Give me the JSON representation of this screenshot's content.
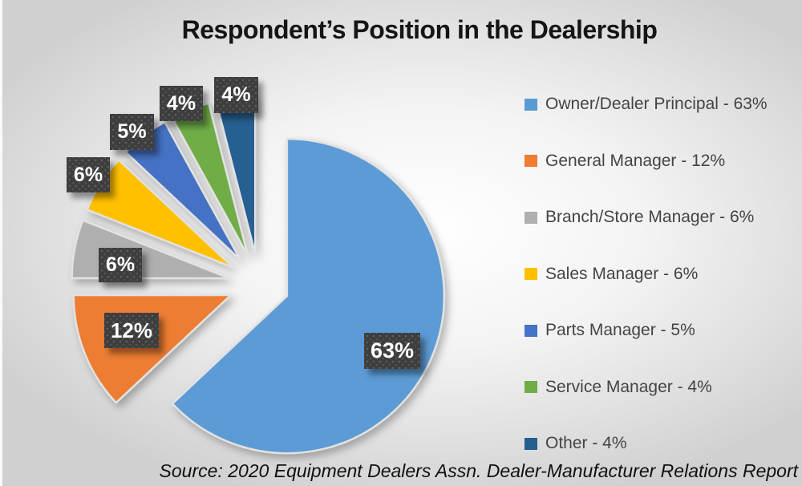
{
  "title": "Respondent’s Position in the Dealership",
  "source": "Source: 2020 Equipment Dealers Assn. Dealer-Manufacturer Relations Report",
  "chart_data": {
    "type": "pie",
    "title": "Respondent’s Position in the Dealership",
    "exploded": true,
    "start_angle_deg": 0,
    "direction": "clockwise",
    "legend_position": "right",
    "slices": [
      {
        "label": "Owner/Dealer Principal",
        "value": 63,
        "pct_label": "63%",
        "color": "#5B9BD5"
      },
      {
        "label": "General Manager",
        "value": 12,
        "pct_label": "12%",
        "color": "#ED7D31"
      },
      {
        "label": "Branch/Store Manager",
        "value": 6,
        "pct_label": "6%",
        "color": "#AFAFAF"
      },
      {
        "label": "Sales Manager",
        "value": 6,
        "pct_label": "6%",
        "color": "#FFC000"
      },
      {
        "label": "Parts Manager",
        "value": 5,
        "pct_label": "5%",
        "color": "#4472C4"
      },
      {
        "label": "Service Manager",
        "value": 4,
        "pct_label": "4%",
        "color": "#70AD47"
      },
      {
        "label": "Other",
        "value": 4,
        "pct_label": "4%",
        "color": "#255E91"
      }
    ],
    "legend_items": [
      {
        "text": "Owner/Dealer Principal - 63%"
      },
      {
        "text": "General Manager - 12%"
      },
      {
        "text": "Branch/Store Manager - 6%"
      },
      {
        "text": "Sales Manager - 6%"
      },
      {
        "text": "Parts Manager - 5%"
      },
      {
        "text": "Service Manager - 4%"
      },
      {
        "text": "Other - 4%"
      }
    ]
  }
}
